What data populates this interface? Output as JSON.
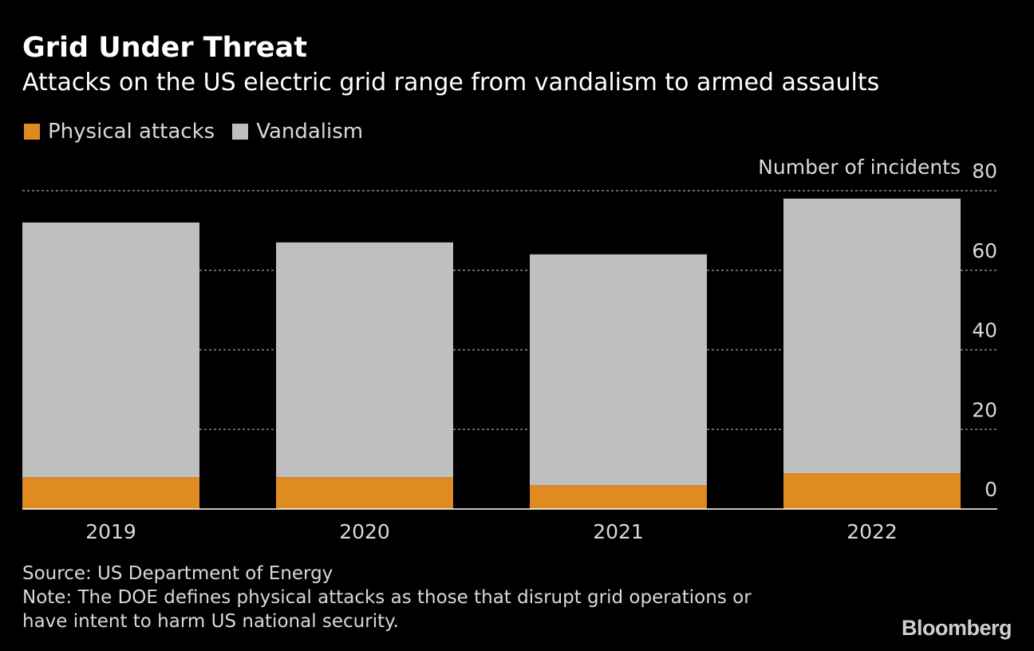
{
  "header": {
    "title": "Grid Under Threat",
    "subtitle": "Attacks on the US electric grid range from vandalism to armed assaults"
  },
  "legend": [
    {
      "label": "Physical attacks",
      "color": "#e08a22"
    },
    {
      "label": "Vandalism",
      "color": "#bfbfbf"
    }
  ],
  "chart_data": {
    "type": "bar",
    "stacked": true,
    "categories": [
      "2019",
      "2020",
      "2021",
      "2022"
    ],
    "series": [
      {
        "name": "Physical attacks",
        "color": "#e08a22",
        "values": [
          8,
          8,
          6,
          9
        ]
      },
      {
        "name": "Vandalism",
        "color": "#bfbfbf",
        "values": [
          64,
          59,
          58,
          69
        ]
      }
    ],
    "ylabel": "Number of incidents",
    "ylim": [
      0,
      80
    ],
    "yticks": [
      0,
      20,
      40,
      60,
      80
    ],
    "grid": true,
    "y_axis_side": "right",
    "legend_position": "top-left"
  },
  "footer": {
    "source": "Source: US Department of Energy",
    "note_line1": "Note: The DOE defines physical attacks as those that disrupt grid operations or",
    "note_line2": "have intent to harm US national security."
  },
  "brand": "Bloomberg"
}
